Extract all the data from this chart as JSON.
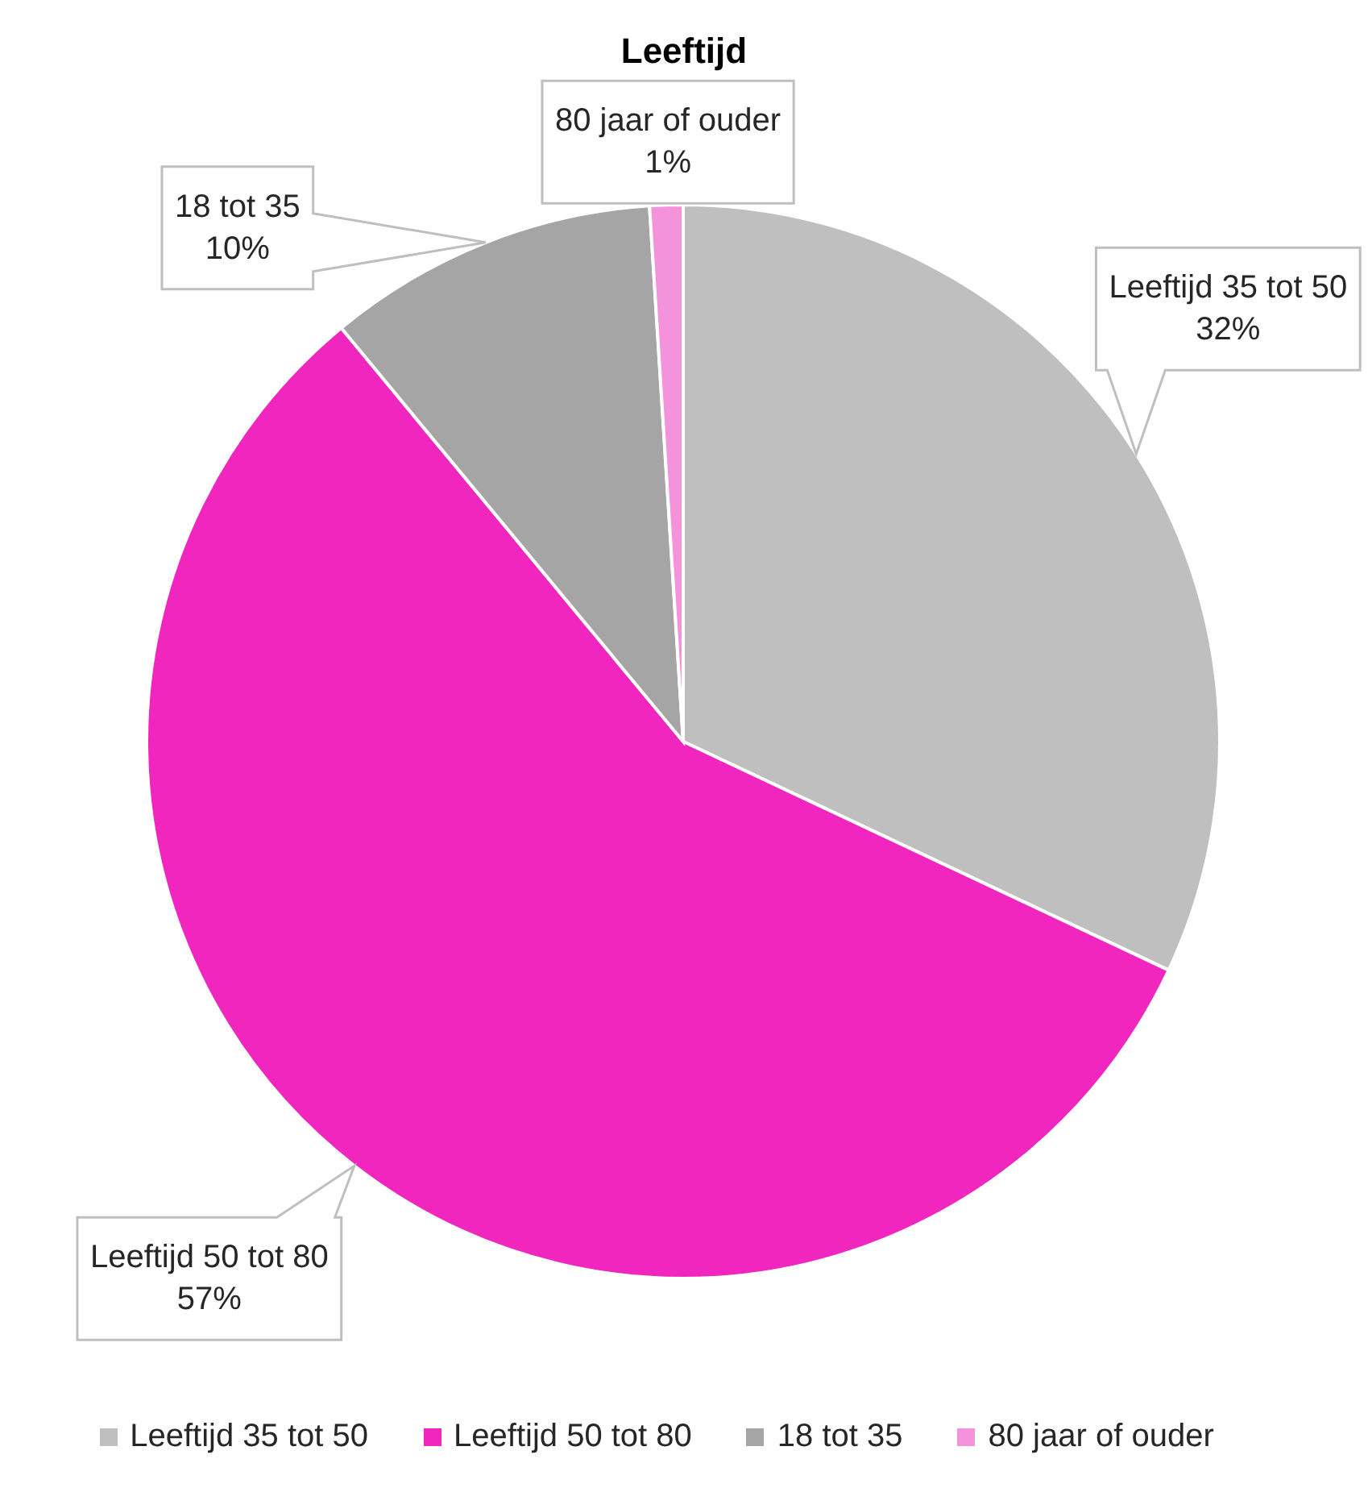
{
  "chart_data": {
    "type": "pie",
    "title": "Leeftijd",
    "categories": [
      "Leeftijd 35 tot 50",
      "Leeftijd 50 tot 80",
      "18 tot 35",
      "80 jaar of ouder"
    ],
    "values": [
      32,
      57,
      10,
      1
    ],
    "colors": [
      "#bfbfbf",
      "#f026be",
      "#a5a5a5",
      "#f492dc"
    ],
    "value_labels": [
      "32%",
      "57%",
      "10%",
      "1%"
    ],
    "legend": "bottom"
  }
}
